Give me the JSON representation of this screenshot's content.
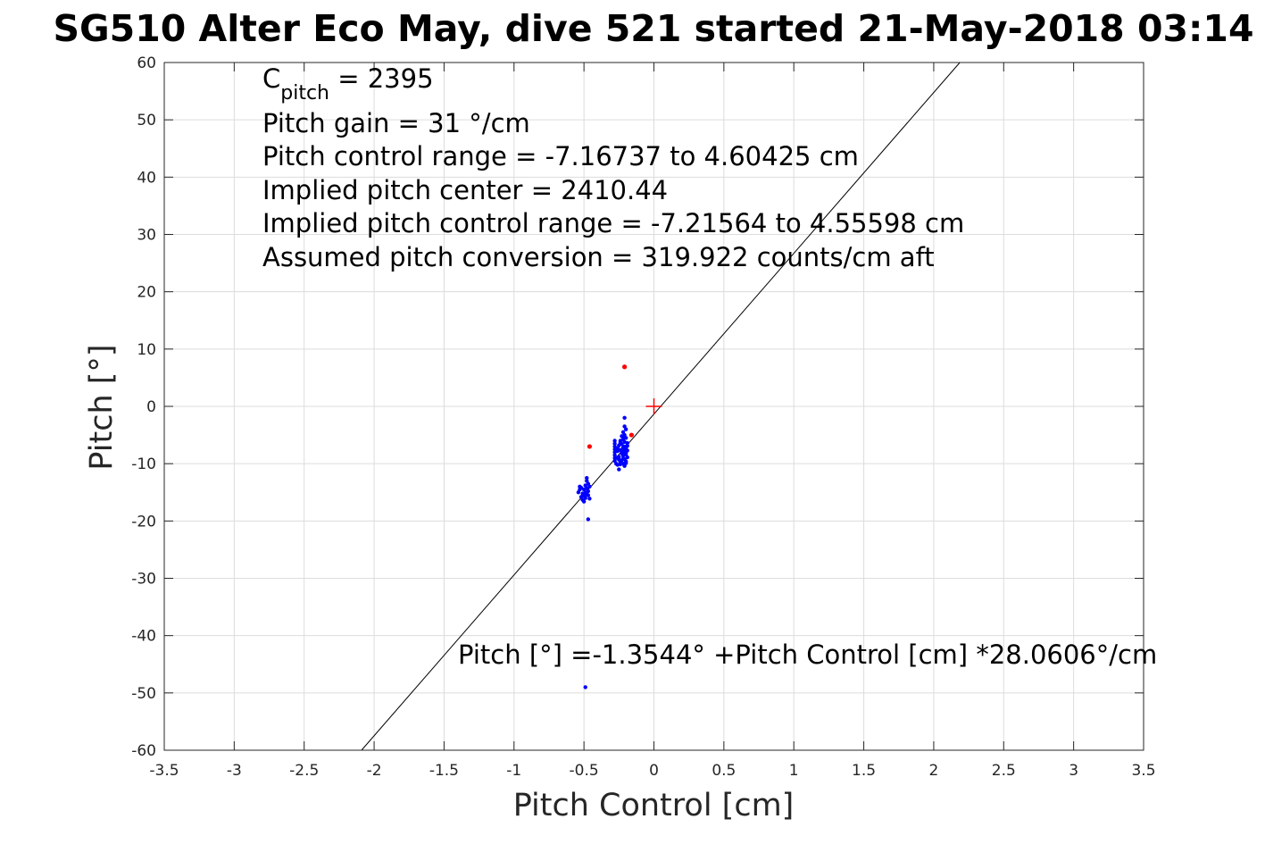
{
  "chart_data": {
    "type": "scatter",
    "title": "SG510 Alter Eco May, dive 521 started 21-May-2018 03:14",
    "xlabel": "Pitch Control [cm]",
    "ylabel": "Pitch [°]",
    "xlim": [
      -3.5,
      3.5
    ],
    "ylim": [
      -60,
      60
    ],
    "xticks": [
      -3.5,
      -3,
      -2.5,
      -2,
      -1.5,
      -1,
      -0.5,
      0,
      0.5,
      1,
      1.5,
      2,
      2.5,
      3,
      3.5
    ],
    "xtick_labels": [
      "-3.5",
      "-3",
      "-2.5",
      "-2",
      "-1.5",
      "-1",
      "-0.5",
      "0",
      "0.5",
      "1",
      "1.5",
      "2",
      "2.5",
      "3",
      "3.5"
    ],
    "yticks": [
      60,
      50,
      40,
      30,
      20,
      10,
      0,
      -10,
      -20,
      -30,
      -40,
      -50,
      -60
    ],
    "ytick_labels": [
      "60",
      "50",
      "40",
      "30",
      "20",
      "10",
      "0",
      "-10",
      "-20",
      "-30",
      "-40",
      "-50",
      "-60"
    ],
    "grid": true,
    "fit_line": {
      "intercept": -1.3544,
      "slope": 28.0606,
      "color": "#000000"
    },
    "center_marker": {
      "x": 0,
      "y": 0,
      "color": "#ff0000",
      "shape": "plus"
    },
    "annotations": {
      "c_pitch_symbol": "C",
      "c_pitch_subscript": "pitch",
      "c_pitch_value": " = 2395",
      "lines": [
        "Pitch gain = 31 °/cm",
        "Pitch control range = -7.16737 to 4.60425 cm",
        "Implied pitch center = 2410.44",
        "Implied pitch control range = -7.21564 to 4.55598 cm",
        "Assumed pitch conversion = 319.922 counts/cm aft"
      ],
      "fit_equation": "Pitch [°] =-1.3544° +Pitch Control [cm] *28.0606°/cm"
    },
    "series": [
      {
        "color": "#0000ff",
        "marker_size": 2.2,
        "points": [
          [
            -0.21,
            -2
          ],
          [
            -0.21,
            -3.5
          ],
          [
            -0.2,
            -4
          ],
          [
            -0.22,
            -4.5
          ],
          [
            -0.21,
            -5
          ],
          [
            -0.23,
            -5.2
          ],
          [
            -0.2,
            -5.5
          ],
          [
            -0.22,
            -5.8
          ],
          [
            -0.24,
            -6
          ],
          [
            -0.21,
            -6.2
          ],
          [
            -0.19,
            -6.4
          ],
          [
            -0.23,
            -6.6
          ],
          [
            -0.25,
            -6.8
          ],
          [
            -0.21,
            -7
          ],
          [
            -0.22,
            -7.2
          ],
          [
            -0.2,
            -7.4
          ],
          [
            -0.24,
            -7.6
          ],
          [
            -0.26,
            -7.8
          ],
          [
            -0.21,
            -8
          ],
          [
            -0.23,
            -8.2
          ],
          [
            -0.2,
            -8.4
          ],
          [
            -0.22,
            -8.6
          ],
          [
            -0.25,
            -8.8
          ],
          [
            -0.27,
            -9
          ],
          [
            -0.21,
            -9.2
          ],
          [
            -0.23,
            -9.4
          ],
          [
            -0.2,
            -9.6
          ],
          [
            -0.24,
            -9.8
          ],
          [
            -0.22,
            -10
          ],
          [
            -0.26,
            -10.2
          ],
          [
            -0.21,
            -10.4
          ],
          [
            -0.25,
            -11
          ],
          [
            -0.28,
            -6
          ],
          [
            -0.28,
            -6.5
          ],
          [
            -0.28,
            -7
          ],
          [
            -0.28,
            -7.5
          ],
          [
            -0.28,
            -8
          ],
          [
            -0.28,
            -8.5
          ],
          [
            -0.28,
            -9
          ],
          [
            -0.28,
            -9.5
          ],
          [
            -0.27,
            -10
          ],
          [
            -0.24,
            -6.3
          ],
          [
            -0.23,
            -7.9
          ],
          [
            -0.22,
            -9.1
          ],
          [
            -0.2,
            -8.1
          ],
          [
            -0.19,
            -7.7
          ],
          [
            -0.19,
            -8.9
          ],
          [
            -0.2,
            -9.9
          ],
          [
            -0.26,
            -7.3
          ],
          [
            -0.25,
            -9.3
          ],
          [
            -0.24,
            -10.1
          ],
          [
            -0.22,
            -5.3
          ],
          [
            -0.19,
            -6.9
          ],
          [
            -0.21,
            -7.8
          ],
          [
            -0.48,
            -12.5
          ],
          [
            -0.48,
            -13
          ],
          [
            -0.47,
            -13.5
          ],
          [
            -0.49,
            -13.8
          ],
          [
            -0.46,
            -14
          ],
          [
            -0.48,
            -14.3
          ],
          [
            -0.5,
            -14.5
          ],
          [
            -0.47,
            -14.8
          ],
          [
            -0.49,
            -15
          ],
          [
            -0.51,
            -15.2
          ],
          [
            -0.48,
            -15.4
          ],
          [
            -0.5,
            -15.6
          ],
          [
            -0.52,
            -15.8
          ],
          [
            -0.49,
            -16
          ],
          [
            -0.51,
            -16.3
          ],
          [
            -0.53,
            -14
          ],
          [
            -0.53,
            -14.5
          ],
          [
            -0.54,
            -15
          ],
          [
            -0.47,
            -15.5
          ],
          [
            -0.46,
            -16.1
          ],
          [
            -0.52,
            -14.2
          ],
          [
            -0.5,
            -16.6
          ],
          [
            -0.47,
            -19.7
          ],
          [
            -0.49,
            -49
          ]
        ]
      },
      {
        "color": "#ff0000",
        "marker_size": 2.6,
        "points": [
          [
            -0.21,
            6.9
          ],
          [
            -0.46,
            -7
          ],
          [
            -0.16,
            -5
          ]
        ]
      }
    ]
  }
}
